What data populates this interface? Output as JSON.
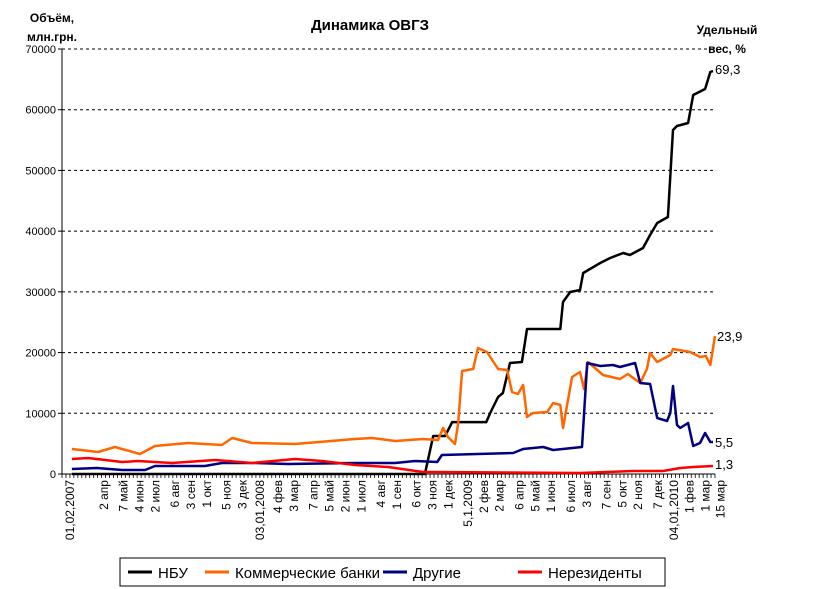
{
  "chart_data": {
    "type": "line",
    "title": "Динамика ОВГЗ",
    "ylabel_lines": [
      "Объём,",
      "млн.грн."
    ],
    "y2label_lines": [
      "Удельный",
      "вес, %"
    ],
    "xlabel": "",
    "x_units": "weeks (index, 01.02.2007 = 2)",
    "xlim": [
      0,
      165
    ],
    "ylim": [
      0,
      70000
    ],
    "yticks": [
      0,
      10000,
      20000,
      30000,
      40000,
      50000,
      60000,
      70000
    ],
    "grid": "horizontal dashed",
    "legend_position": "bottom",
    "xticks": [
      {
        "x": 2,
        "label": "01,02,2007"
      },
      {
        "x": 10.6,
        "label": "2 апр"
      },
      {
        "x": 15.6,
        "label": "7 май"
      },
      {
        "x": 19.6,
        "label": "4 июн"
      },
      {
        "x": 23.6,
        "label": "2 июл"
      },
      {
        "x": 28.6,
        "label": "6 авг"
      },
      {
        "x": 32.6,
        "label": "3 сен"
      },
      {
        "x": 36.6,
        "label": "1 окт"
      },
      {
        "x": 41.6,
        "label": "5 ноя"
      },
      {
        "x": 45.6,
        "label": "3 дек"
      },
      {
        "x": 50,
        "label": "03,01,2008"
      },
      {
        "x": 54.6,
        "label": "4 фев"
      },
      {
        "x": 58.6,
        "label": "3 мар"
      },
      {
        "x": 63.6,
        "label": "7 апр"
      },
      {
        "x": 67.6,
        "label": "5 май"
      },
      {
        "x": 71.6,
        "label": "2 июн"
      },
      {
        "x": 75.7,
        "label": "1 июл"
      },
      {
        "x": 80.6,
        "label": "4 авг"
      },
      {
        "x": 84.6,
        "label": "1 сен"
      },
      {
        "x": 89.6,
        "label": "6 окт"
      },
      {
        "x": 93.6,
        "label": "3 ноя"
      },
      {
        "x": 97.6,
        "label": "1 дек"
      },
      {
        "x": 102.6,
        "label": "5,1,2009"
      },
      {
        "x": 106.6,
        "label": "2 фев"
      },
      {
        "x": 110.6,
        "label": "2 мар"
      },
      {
        "x": 115.6,
        "label": "6 апр"
      },
      {
        "x": 119.7,
        "label": "5 май"
      },
      {
        "x": 123.6,
        "label": "1 июн"
      },
      {
        "x": 128.6,
        "label": "6 июл"
      },
      {
        "x": 132.6,
        "label": "3 авг"
      },
      {
        "x": 137.6,
        "label": "7 сен"
      },
      {
        "x": 141.6,
        "label": "5 окт"
      },
      {
        "x": 145.6,
        "label": "2 ноя"
      },
      {
        "x": 150.6,
        "label": "7 дек"
      },
      {
        "x": 154.6,
        "label": "04,01,2010"
      },
      {
        "x": 158.6,
        "label": "1 фев"
      },
      {
        "x": 162.6,
        "label": "1 мар"
      },
      {
        "x": 164.6,
        "label": "15 мар"
      }
    ],
    "series": [
      {
        "name": "НБУ",
        "color": "#000000",
        "end_label": "69,3",
        "points": [
          [
            2.5,
            0
          ],
          [
            91.7,
            0
          ],
          [
            93.8,
            6260
          ],
          [
            96.8,
            6260
          ],
          [
            98.6,
            8550
          ],
          [
            107.2,
            8550
          ],
          [
            108.2,
            10050
          ],
          [
            110.2,
            12680
          ],
          [
            111.4,
            13340
          ],
          [
            113.2,
            18280
          ],
          [
            116.2,
            18450
          ],
          [
            117.5,
            23880
          ],
          [
            125.9,
            23880
          ],
          [
            126.6,
            28330
          ],
          [
            128.4,
            29980
          ],
          [
            130.9,
            30300
          ],
          [
            131.7,
            33100
          ],
          [
            136,
            34750
          ],
          [
            138.5,
            35580
          ],
          [
            141.8,
            36400
          ],
          [
            143.5,
            36070
          ],
          [
            146.8,
            37220
          ],
          [
            148.6,
            39360
          ],
          [
            150.4,
            41340
          ],
          [
            153.1,
            42330
          ],
          [
            154.4,
            56660
          ],
          [
            155.4,
            57320
          ],
          [
            158.2,
            57810
          ],
          [
            159.5,
            62420
          ],
          [
            162.5,
            63410
          ],
          [
            163.8,
            66210
          ],
          [
            164.5,
            66370
          ]
        ]
      },
      {
        "name": "Коммерческие банки",
        "color": "#ff6600",
        "end_label": "23,9",
        "points": [
          [
            2.5,
            4120
          ],
          [
            9.1,
            3620
          ],
          [
            13.4,
            4450
          ],
          [
            19.7,
            3290
          ],
          [
            23.5,
            4610
          ],
          [
            31.8,
            5110
          ],
          [
            40.4,
            4780
          ],
          [
            43,
            5930
          ],
          [
            48,
            5110
          ],
          [
            58.9,
            4940
          ],
          [
            74,
            5760
          ],
          [
            78.3,
            5930
          ],
          [
            84.2,
            5440
          ],
          [
            91.2,
            5760
          ],
          [
            95,
            5600
          ],
          [
            96.3,
            7580
          ],
          [
            97.5,
            6090
          ],
          [
            99.3,
            4940
          ],
          [
            100.1,
            8400
          ],
          [
            101.1,
            16960
          ],
          [
            103.9,
            17290
          ],
          [
            105.1,
            20750
          ],
          [
            107.4,
            20090
          ],
          [
            110.2,
            17290
          ],
          [
            112.5,
            17130
          ],
          [
            113.7,
            13510
          ],
          [
            115.2,
            13180
          ],
          [
            116.5,
            14660
          ],
          [
            117.5,
            9390
          ],
          [
            119,
            10050
          ],
          [
            122.6,
            10210
          ],
          [
            124.1,
            11690
          ],
          [
            125.9,
            11360
          ],
          [
            126.6,
            7580
          ],
          [
            128.9,
            15980
          ],
          [
            130.9,
            16800
          ],
          [
            131.9,
            14000
          ],
          [
            132.9,
            18450
          ],
          [
            136.7,
            16310
          ],
          [
            141,
            15650
          ],
          [
            143,
            16470
          ],
          [
            146.1,
            14990
          ],
          [
            147.8,
            17290
          ],
          [
            148.6,
            19930
          ],
          [
            150.4,
            18450
          ],
          [
            153.7,
            19600
          ],
          [
            154.4,
            20590
          ],
          [
            158.7,
            20090
          ],
          [
            161.2,
            19270
          ],
          [
            162.7,
            19430
          ],
          [
            163.8,
            17950
          ],
          [
            165,
            22730
          ]
        ]
      },
      {
        "name": "Другие",
        "color": "#000080",
        "end_label": "5,5",
        "points": [
          [
            2.5,
            820
          ],
          [
            8.8,
            990
          ],
          [
            15.2,
            660
          ],
          [
            21,
            660
          ],
          [
            23.5,
            1320
          ],
          [
            36.1,
            1320
          ],
          [
            40.4,
            1810
          ],
          [
            48.8,
            1810
          ],
          [
            57.1,
            1650
          ],
          [
            74,
            1810
          ],
          [
            84.2,
            1810
          ],
          [
            89.2,
            2140
          ],
          [
            94.8,
            1980
          ],
          [
            96,
            3130
          ],
          [
            114,
            3460
          ],
          [
            116.5,
            4120
          ],
          [
            121.6,
            4450
          ],
          [
            124.1,
            3950
          ],
          [
            131.4,
            4450
          ],
          [
            132.7,
            18280
          ],
          [
            136,
            17790
          ],
          [
            139.2,
            17950
          ],
          [
            141,
            17620
          ],
          [
            144.8,
            18280
          ],
          [
            146.1,
            14990
          ],
          [
            148.6,
            14820
          ],
          [
            150.4,
            9220
          ],
          [
            152.9,
            8730
          ],
          [
            153.7,
            10050
          ],
          [
            154.4,
            14490
          ],
          [
            155.4,
            8070
          ],
          [
            156.2,
            7580
          ],
          [
            158.2,
            8400
          ],
          [
            159.5,
            4610
          ],
          [
            161.2,
            5110
          ],
          [
            162.5,
            6750
          ],
          [
            163.8,
            5270
          ],
          [
            164.5,
            5270
          ]
        ]
      },
      {
        "name": "Нерезиденты",
        "color": "#ff0000",
        "end_label": "1,3",
        "points": [
          [
            2.5,
            2470
          ],
          [
            6.6,
            2640
          ],
          [
            15.2,
            1980
          ],
          [
            19.2,
            2140
          ],
          [
            27.8,
            1810
          ],
          [
            38.7,
            2310
          ],
          [
            48,
            1810
          ],
          [
            58.9,
            2470
          ],
          [
            65.7,
            2140
          ],
          [
            74,
            1480
          ],
          [
            82.4,
            1150
          ],
          [
            91.2,
            330
          ],
          [
            93.5,
            330
          ],
          [
            130.9,
            160
          ],
          [
            144.3,
            490
          ],
          [
            151.9,
            490
          ],
          [
            156.2,
            990
          ],
          [
            159.5,
            1150
          ],
          [
            164.5,
            1320
          ]
        ]
      }
    ]
  }
}
